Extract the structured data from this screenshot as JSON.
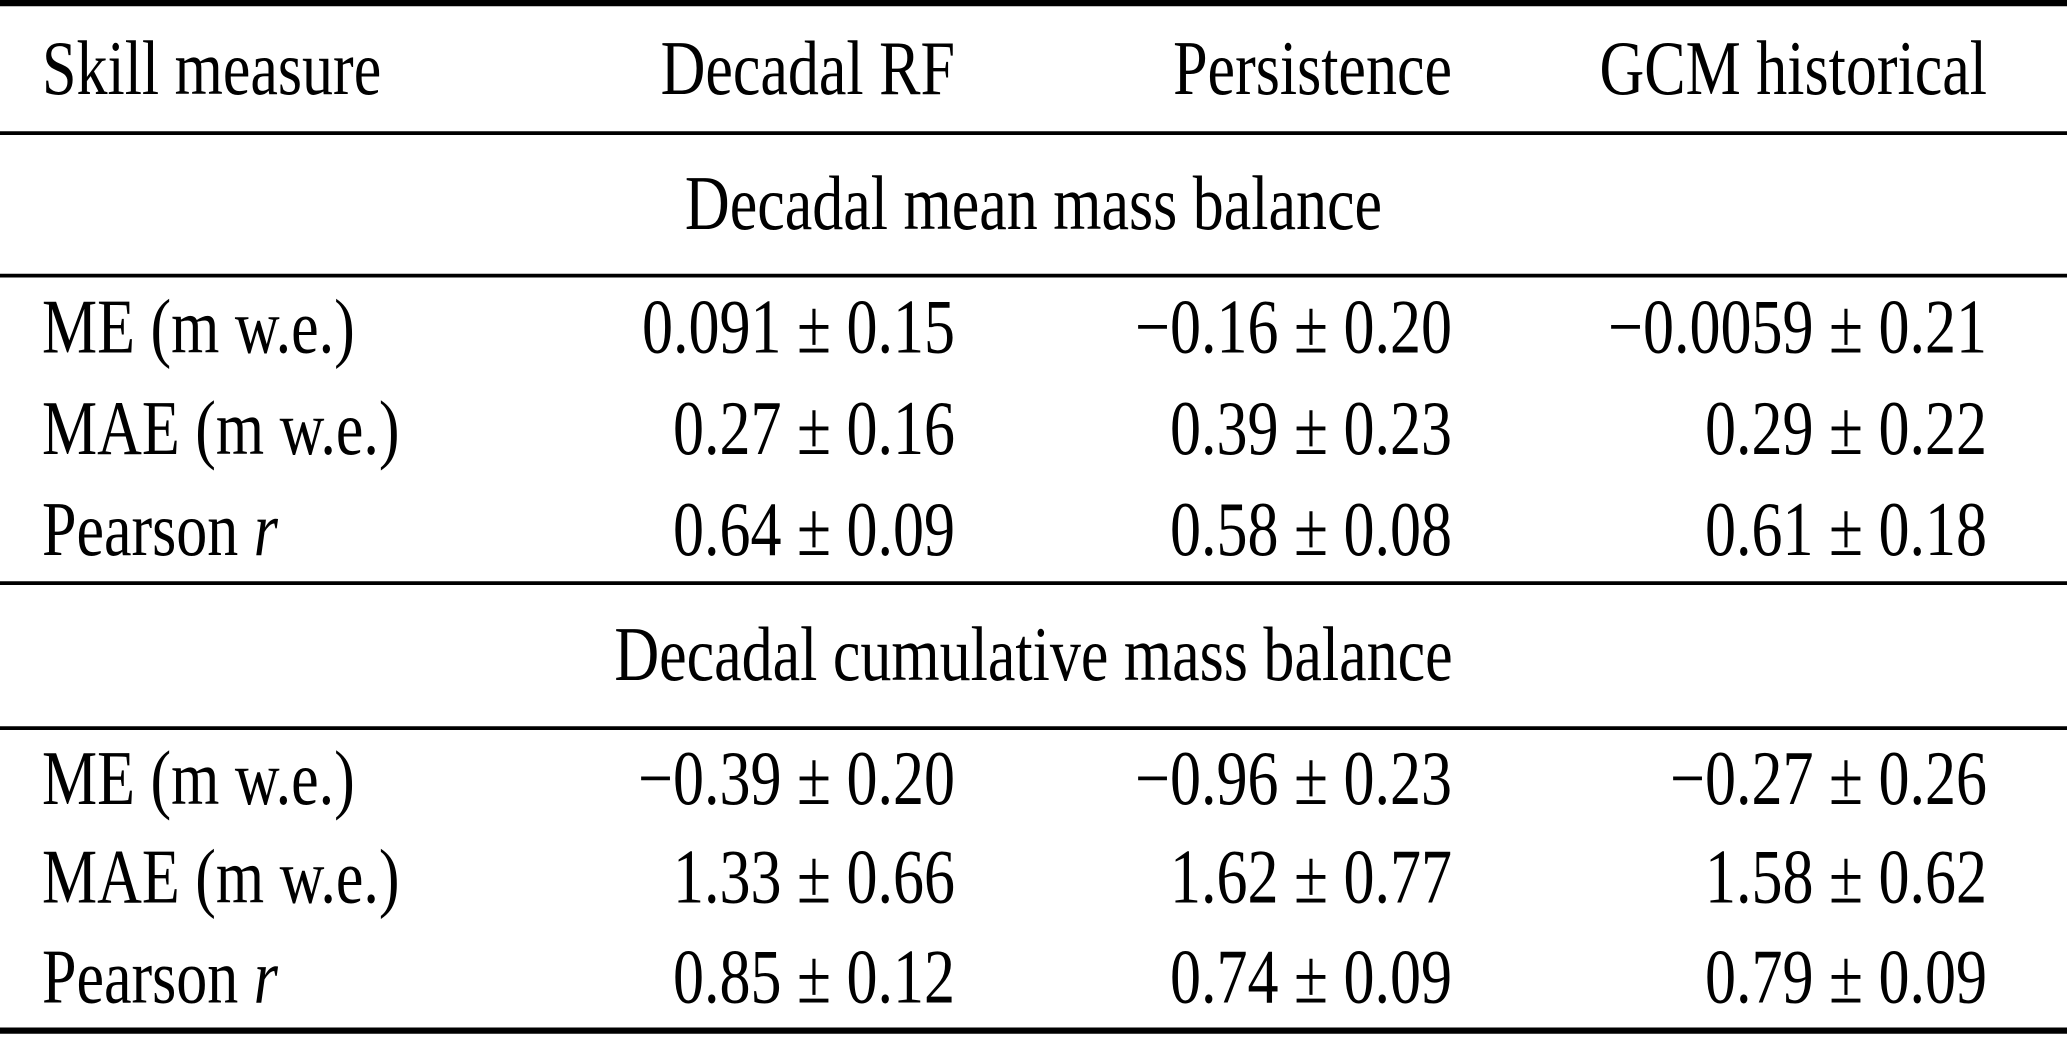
{
  "table": {
    "columns": {
      "c1": "Skill measure",
      "c2": "Decadal RF",
      "c3": "Persistence",
      "c4": "GCM historical"
    },
    "sections": [
      {
        "title": "Decadal mean mass balance",
        "rows": [
          {
            "label": "ME (m w.e.)",
            "values": [
              "0.091 ± 0.15",
              "−0.16 ± 0.20",
              "−0.0059 ± 0.21"
            ]
          },
          {
            "label": "MAE (m w.e.)",
            "values": [
              "0.27 ± 0.16",
              "0.39 ± 0.23",
              "0.29 ± 0.22"
            ]
          },
          {
            "label_main": "Pearson ",
            "label_italic": "r",
            "values": [
              "0.64 ± 0.09",
              "0.58 ± 0.08",
              "0.61 ± 0.18"
            ]
          }
        ]
      },
      {
        "title": "Decadal cumulative mass balance",
        "rows": [
          {
            "label": "ME (m w.e.)",
            "values": [
              "−0.39 ± 0.20",
              "−0.96 ± 0.23",
              "−0.27 ± 0.26"
            ]
          },
          {
            "label": "MAE (m w.e.)",
            "values": [
              "1.33 ± 0.66",
              "1.62 ± 0.77",
              "1.58 ± 0.62"
            ]
          },
          {
            "label_main": "Pearson ",
            "label_italic": "r",
            "values": [
              "0.85 ± 0.12",
              "0.74 ± 0.09",
              "0.79 ± 0.09"
            ]
          }
        ]
      }
    ],
    "colors": {
      "text": "#000000",
      "background": "#ffffff",
      "rule": "#000000"
    }
  }
}
